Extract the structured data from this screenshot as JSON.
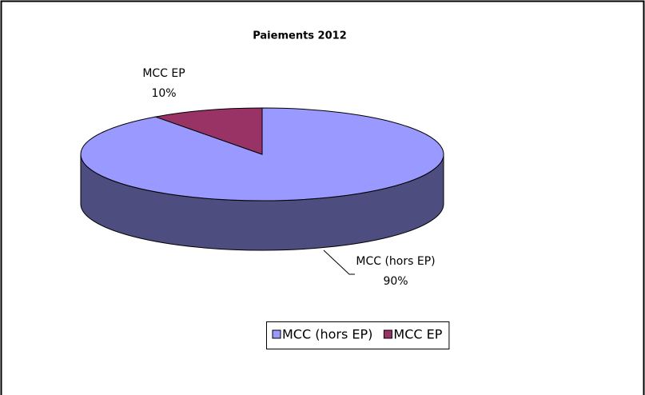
{
  "chart_data": {
    "type": "pie",
    "title": "Paiements 2012",
    "categories": [
      "MCC (hors EP)",
      "MCC EP"
    ],
    "values": [
      90,
      10
    ],
    "value_labels": [
      "90%",
      "10%"
    ],
    "colors": [
      "#9999ff",
      "#993366"
    ],
    "legend": "bottom"
  }
}
